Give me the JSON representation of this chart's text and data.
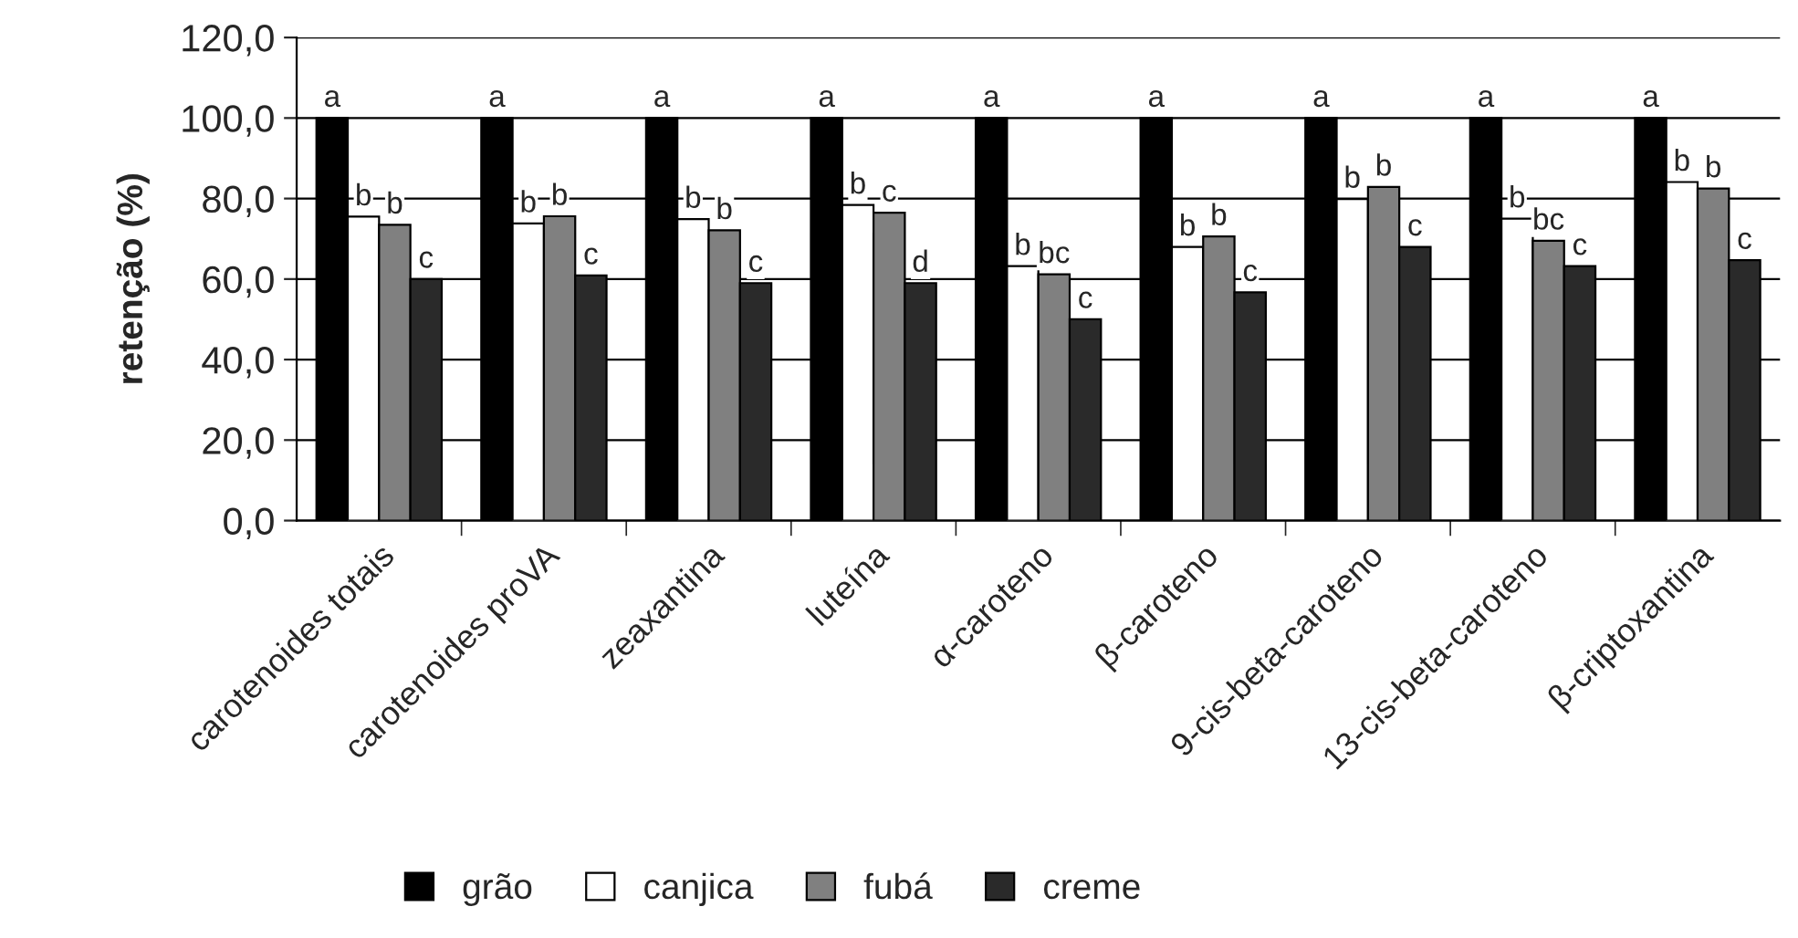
{
  "chart_data": {
    "type": "bar",
    "ylabel": "retenção (%)",
    "categories": [
      "carotenoides totais",
      "carotenoides proVA",
      "zeaxantina",
      "luteína",
      "α-caroteno",
      "β-caroteno",
      "9-cis-beta-caroteno",
      "13-cis-beta-caroteno",
      "β-criptoxantina"
    ],
    "series": [
      {
        "name": "grão",
        "color": "#000000",
        "values": [
          100,
          100,
          100,
          100,
          100,
          100,
          100,
          100,
          100
        ],
        "value_labels": [
          "a",
          "a",
          "a",
          "a",
          "a",
          "a",
          "a",
          "a",
          "a"
        ]
      },
      {
        "name": "canjica",
        "color": "#ffffff",
        "values": [
          75.5,
          73.8,
          74.9,
          78.4,
          63.2,
          68.0,
          79.9,
          75.0,
          84.1
        ],
        "value_labels": [
          "b",
          "b",
          "b",
          "b",
          "b",
          "b",
          "b",
          "b",
          "b"
        ]
      },
      {
        "name": "fubá",
        "color": "#808080",
        "values": [
          73.5,
          75.6,
          72.1,
          76.5,
          61.2,
          70.6,
          82.9,
          69.5,
          82.5
        ],
        "value_labels": [
          "b",
          "b",
          "b",
          "c",
          "bc",
          "b",
          "b",
          "bc",
          "b"
        ]
      },
      {
        "name": "creme",
        "color": "#2a2a2a",
        "values": [
          60.0,
          60.9,
          59.0,
          59.0,
          50.0,
          56.7,
          68.0,
          63.2,
          64.7
        ],
        "value_labels": [
          "c",
          "c",
          "c",
          "d",
          "c",
          "c",
          "c",
          "c",
          "c"
        ]
      }
    ],
    "ylim": [
      0,
      120
    ],
    "yticks": [
      {
        "value": 0,
        "label": "0,0"
      },
      {
        "value": 20,
        "label": "20,0"
      },
      {
        "value": 40,
        "label": "40,0"
      },
      {
        "value": 60,
        "label": "60,0"
      },
      {
        "value": 80,
        "label": "80,0"
      },
      {
        "value": 100,
        "label": "100,0"
      },
      {
        "value": 120,
        "label": "120,0"
      }
    ],
    "grid": "y",
    "legend": "bottom"
  }
}
